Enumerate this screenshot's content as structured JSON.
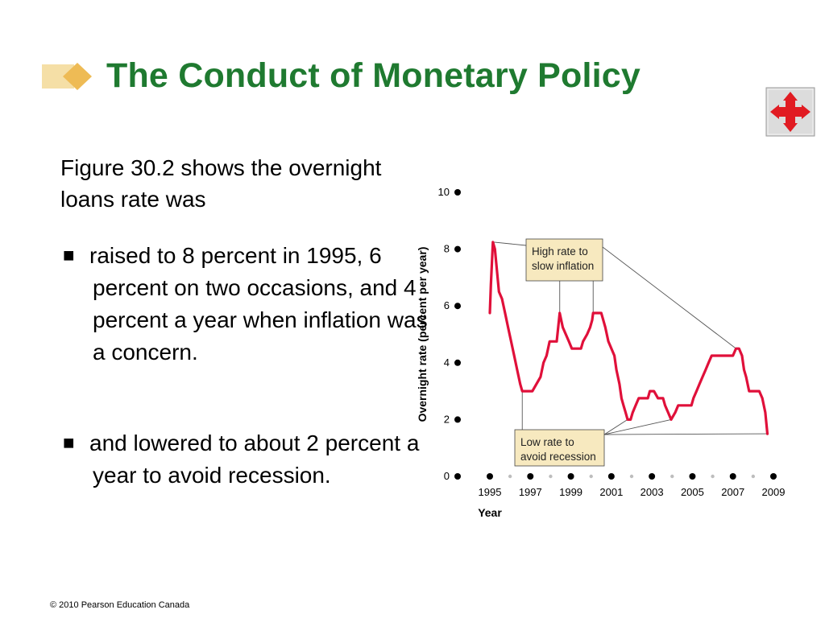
{
  "slide": {
    "title": "The Conduct of Monetary Policy",
    "intro": "Figure 30.2 shows the overnight loans rate was",
    "bullets": [
      "raised to 8 percent in 1995, 6 percent on two occasions, and 4 percent a year when inflation was a concern.",
      "and lowered to about 2 percent a year to avoid recession."
    ],
    "bullet_mark": "■",
    "footer": "© 2010 Pearson Education Canada",
    "icons": {
      "title_decor": "diamond-arrow-icon",
      "navigation": "four-way-arrow-icon"
    },
    "colors": {
      "title": "#1f7a30",
      "series": "#e0103a",
      "annotation_fill": "#f7e9bf",
      "nav_arrow": "#e11b22"
    }
  },
  "chart_data": {
    "type": "line",
    "xlabel": "Year",
    "ylabel": "Overnight rate (percent per year)",
    "x_ticks": [
      "1995",
      "1997",
      "1999",
      "2001",
      "2003",
      "2005",
      "2007",
      "2009"
    ],
    "y_ticks": [
      "0",
      "2",
      "4",
      "6",
      "8",
      "10"
    ],
    "xlim": [
      1995,
      2009
    ],
    "ylim": [
      0,
      10
    ],
    "series": [
      {
        "points": [
          [
            1995.0,
            5.75
          ],
          [
            1995.05,
            6.75
          ],
          [
            1995.15,
            8.25
          ],
          [
            1995.25,
            8.0
          ],
          [
            1995.35,
            7.25
          ],
          [
            1995.45,
            6.5
          ],
          [
            1995.6,
            6.25
          ],
          [
            1995.75,
            5.75
          ],
          [
            1995.9,
            5.25
          ],
          [
            1996.05,
            4.75
          ],
          [
            1996.2,
            4.25
          ],
          [
            1996.35,
            3.75
          ],
          [
            1996.5,
            3.25
          ],
          [
            1996.6,
            3.0
          ],
          [
            1997.1,
            3.0
          ],
          [
            1997.3,
            3.25
          ],
          [
            1997.5,
            3.5
          ],
          [
            1997.65,
            4.0
          ],
          [
            1997.8,
            4.25
          ],
          [
            1997.95,
            4.75
          ],
          [
            1998.3,
            4.75
          ],
          [
            1998.45,
            5.75
          ],
          [
            1998.6,
            5.25
          ],
          [
            1998.75,
            5.0
          ],
          [
            1998.9,
            4.75
          ],
          [
            1999.05,
            4.5
          ],
          [
            1999.5,
            4.5
          ],
          [
            1999.6,
            4.75
          ],
          [
            1999.8,
            5.0
          ],
          [
            1999.95,
            5.25
          ],
          [
            2000.05,
            5.5
          ],
          [
            2000.1,
            5.75
          ],
          [
            2000.5,
            5.75
          ],
          [
            2000.6,
            5.5
          ],
          [
            2000.7,
            5.25
          ],
          [
            2000.85,
            4.75
          ],
          [
            2001.0,
            4.5
          ],
          [
            2001.15,
            4.25
          ],
          [
            2001.25,
            3.75
          ],
          [
            2001.4,
            3.25
          ],
          [
            2001.5,
            2.75
          ],
          [
            2001.6,
            2.5
          ],
          [
            2001.7,
            2.25
          ],
          [
            2001.8,
            2.0
          ],
          [
            2001.95,
            2.0
          ],
          [
            2002.05,
            2.25
          ],
          [
            2002.2,
            2.5
          ],
          [
            2002.35,
            2.75
          ],
          [
            2002.8,
            2.75
          ],
          [
            2002.9,
            3.0
          ],
          [
            2003.1,
            3.0
          ],
          [
            2003.3,
            2.75
          ],
          [
            2003.55,
            2.75
          ],
          [
            2003.65,
            2.5
          ],
          [
            2003.8,
            2.25
          ],
          [
            2003.95,
            2.0
          ],
          [
            2004.15,
            2.25
          ],
          [
            2004.3,
            2.5
          ],
          [
            2004.95,
            2.5
          ],
          [
            2005.05,
            2.75
          ],
          [
            2005.2,
            3.0
          ],
          [
            2005.35,
            3.25
          ],
          [
            2005.5,
            3.5
          ],
          [
            2005.65,
            3.75
          ],
          [
            2005.8,
            4.0
          ],
          [
            2005.95,
            4.25
          ],
          [
            2006.1,
            4.25
          ],
          [
            2007.0,
            4.25
          ],
          [
            2007.15,
            4.5
          ],
          [
            2007.3,
            4.5
          ],
          [
            2007.45,
            4.25
          ],
          [
            2007.55,
            3.75
          ],
          [
            2007.65,
            3.5
          ],
          [
            2007.8,
            3.0
          ],
          [
            2008.3,
            3.0
          ],
          [
            2008.45,
            2.75
          ],
          [
            2008.6,
            2.25
          ],
          [
            2008.7,
            1.5
          ]
        ]
      }
    ],
    "annotations": [
      {
        "text": [
          "High rate to",
          "slow inflation"
        ],
        "targets": [
          [
            1995.15,
            8.25
          ],
          [
            1998.45,
            5.75
          ],
          [
            2000.1,
            5.75
          ],
          [
            2007.15,
            4.5
          ]
        ]
      },
      {
        "text": [
          "Low rate to",
          "avoid recession"
        ],
        "targets": [
          [
            1996.6,
            3.0
          ],
          [
            2001.8,
            2.0
          ],
          [
            2003.95,
            2.0
          ],
          [
            2008.7,
            1.5
          ]
        ]
      }
    ]
  }
}
